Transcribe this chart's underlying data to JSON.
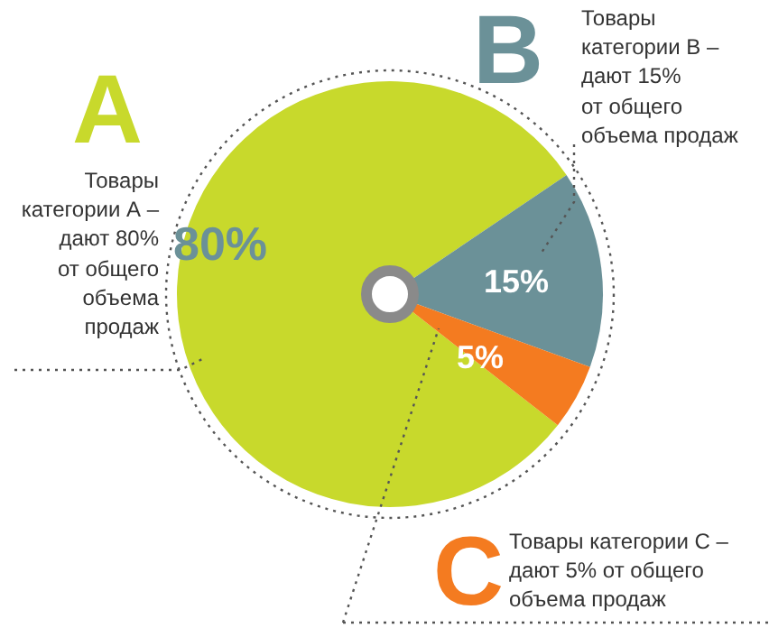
{
  "chart_data": {
    "type": "pie",
    "categories": [
      null,
      null,
      null
    ],
    "values": [
      80,
      15,
      5
    ],
    "colors": [
      "#c8d92c",
      "#6b9198",
      "#f47b20"
    ],
    "value_labels": [
      "80%",
      "15%",
      "5%"
    ],
    "annotations": [
      "A",
      "Товары\nкатегории А –\nдают 80%\nот общего\nобъема\nпродаж",
      "B",
      "Товары\nкатегории В –\nдают 15%\nот общего\nобъема продаж",
      "C",
      "Товары категории С –\nдают 5% от общего\nобъема продаж"
    ],
    "legend": false
  }
}
